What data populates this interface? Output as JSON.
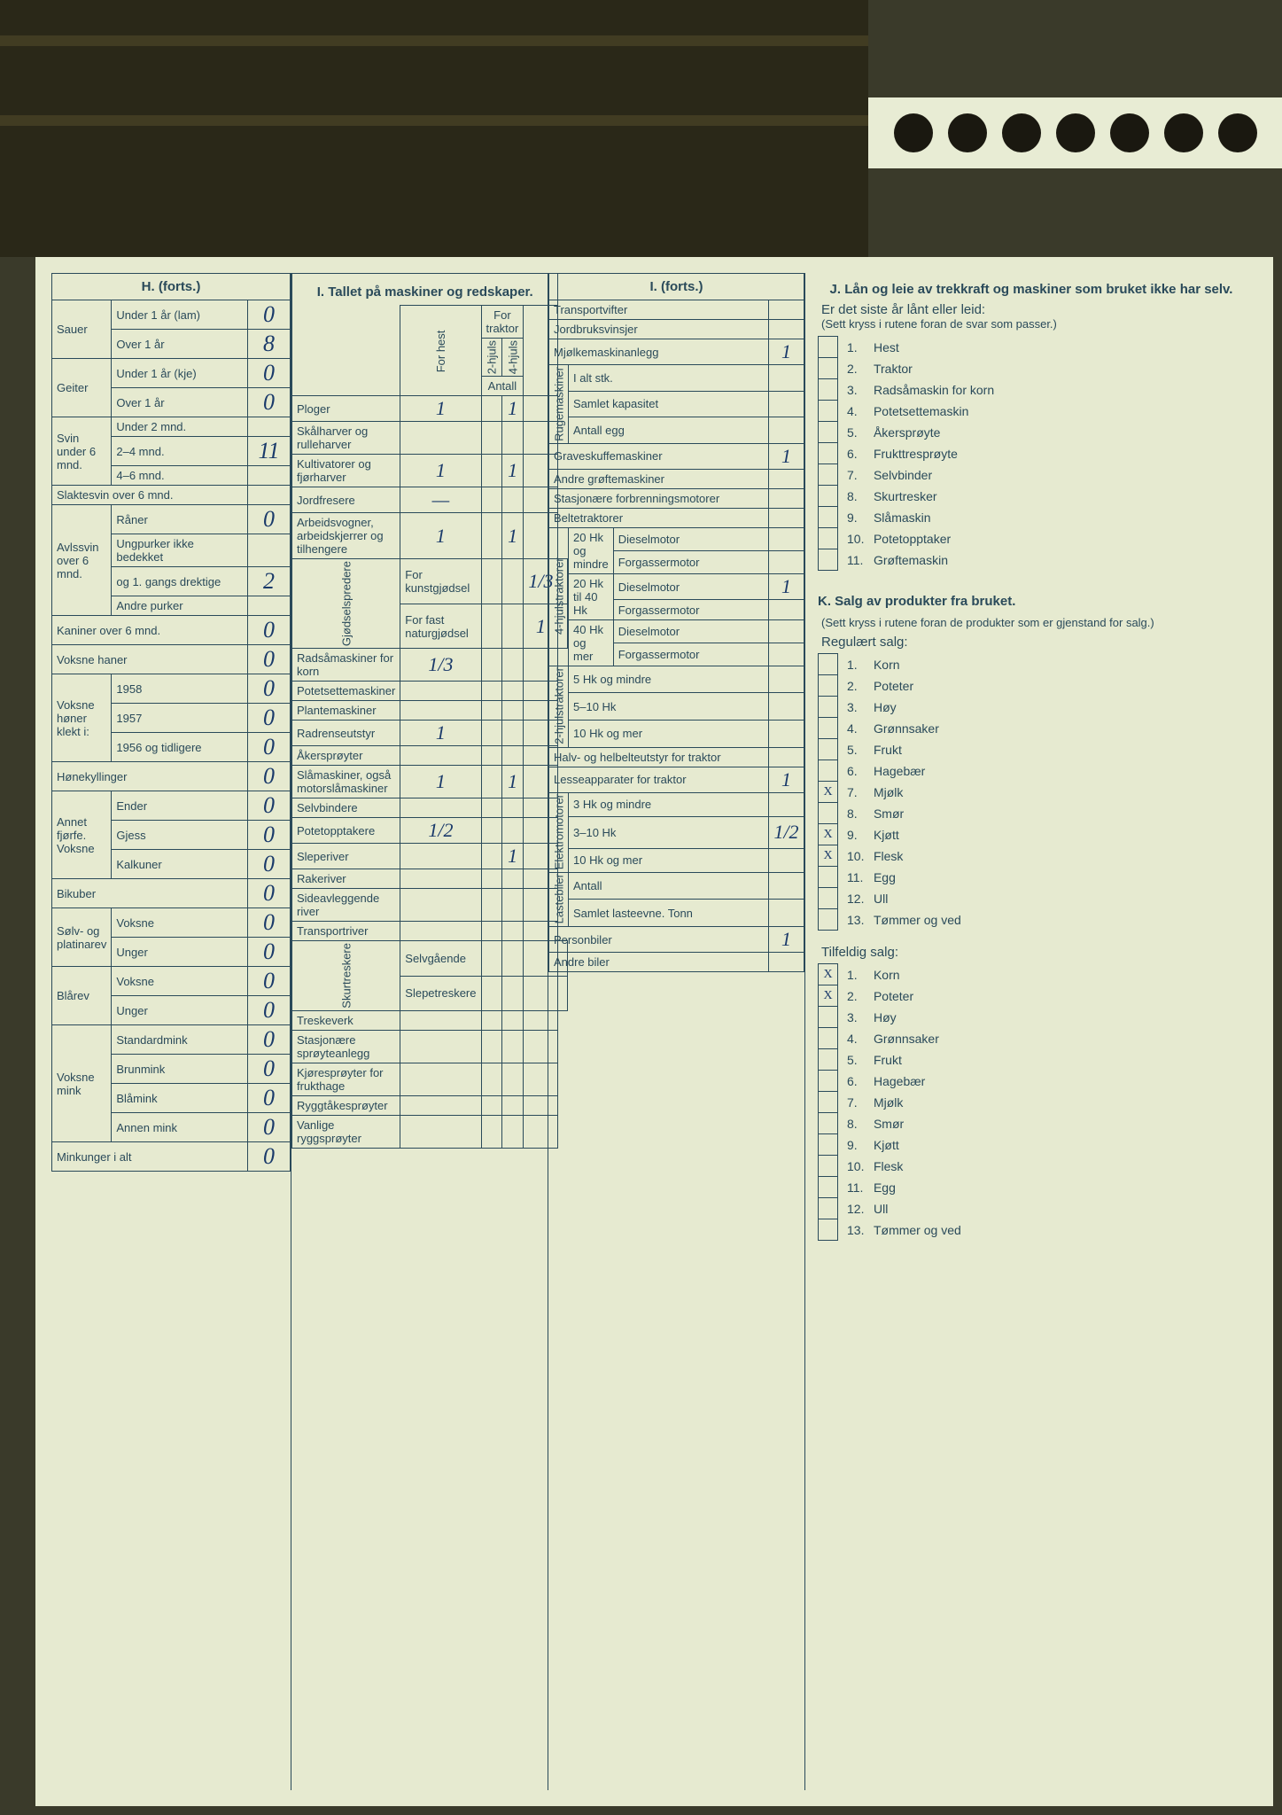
{
  "background_color": "#e6ead0",
  "rule_color": "#2a4a5a",
  "ink_color": "#1a3a6a",
  "sections": {
    "H": {
      "header": "H. (forts.)",
      "rows": [
        {
          "group": "Sauer",
          "label": "Under 1 år (lam)",
          "value": "0"
        },
        {
          "group": "",
          "label": "Over 1 år",
          "value": "8"
        },
        {
          "group": "Geiter",
          "label": "Under 1 år (kje)",
          "value": "0"
        },
        {
          "group": "",
          "label": "Over 1 år",
          "value": "0"
        },
        {
          "group": "Svin under 6 mnd.",
          "label": "Under 2 mnd.",
          "value": ""
        },
        {
          "group": "",
          "label": "2–4 mnd.",
          "value": "11"
        },
        {
          "group": "",
          "label": "4–6 mnd.",
          "value": ""
        },
        {
          "group": "Slaktesvin over 6 mnd.",
          "label": "",
          "value": ""
        },
        {
          "group": "Avlssvin over 6 mnd.",
          "label": "Råner",
          "value": "0"
        },
        {
          "group": "",
          "label": "Ungpurker ikke bedekket",
          "value": ""
        },
        {
          "group": "",
          "label": "og 1. gangs drektige",
          "value": "2"
        },
        {
          "group": "",
          "label": "Andre purker",
          "value": ""
        },
        {
          "group": "Kaniner over 6 mnd.",
          "label": "",
          "value": "0"
        },
        {
          "group": "Voksne haner",
          "label": "",
          "value": "0"
        },
        {
          "group": "Voksne høner klekt i:",
          "label": "1958",
          "value": "0"
        },
        {
          "group": "",
          "label": "1957",
          "value": "0"
        },
        {
          "group": "",
          "label": "1956 og tidligere",
          "value": "0"
        },
        {
          "group": "Hønekyllinger",
          "label": "",
          "value": "0"
        },
        {
          "group": "Annet fjørfe. Voksne",
          "label": "Ender",
          "value": "0"
        },
        {
          "group": "",
          "label": "Gjess",
          "value": "0"
        },
        {
          "group": "",
          "label": "Kalkuner",
          "value": "0"
        },
        {
          "group": "Bikuber",
          "label": "",
          "value": "0"
        },
        {
          "group": "Sølv- og platinarev",
          "label": "Voksne",
          "value": "0"
        },
        {
          "group": "",
          "label": "Unger",
          "value": "0"
        },
        {
          "group": "Blårev",
          "label": "Voksne",
          "value": "0"
        },
        {
          "group": "",
          "label": "Unger",
          "value": "0"
        },
        {
          "group": "Voksne mink",
          "label": "Standardmink",
          "value": "0"
        },
        {
          "group": "",
          "label": "Brunmink",
          "value": "0"
        },
        {
          "group": "",
          "label": "Blåmink",
          "value": "0"
        },
        {
          "group": "",
          "label": "Annen mink",
          "value": "0"
        },
        {
          "group": "Minkunger i alt",
          "label": "",
          "value": "0"
        }
      ]
    },
    "I": {
      "header": "I. Tallet på maskiner og redskaper.",
      "cols": [
        "For hest",
        "2-hjuls",
        "4-hjuls"
      ],
      "traktor_label": "For traktor",
      "antall_label": "Antall",
      "rows": [
        {
          "label": "Ploger",
          "v": [
            "1",
            "",
            "1",
            ""
          ]
        },
        {
          "label": "Skålharver og rulleharver",
          "v": [
            "",
            "",
            "",
            ""
          ]
        },
        {
          "label": "Kultivatorer og fjørharver",
          "v": [
            "1",
            "",
            "1",
            ""
          ]
        },
        {
          "label": "Jordfresere",
          "v": [
            "—",
            "",
            "",
            ""
          ]
        },
        {
          "label": "Arbeidsvogner, arbeidskjerrer og tilhengere",
          "v": [
            "1",
            "",
            "1",
            ""
          ]
        },
        {
          "group": "Gjødselspredere",
          "label": "For kunstgjødsel",
          "v": [
            "",
            "",
            "1/3",
            ""
          ]
        },
        {
          "group": "",
          "label": "For fast naturgjødsel",
          "v": [
            "",
            "",
            "1",
            ""
          ]
        },
        {
          "label": "Radsåmaskiner for korn",
          "v": [
            "1/3",
            "",
            "",
            ""
          ]
        },
        {
          "label": "Potetsettemaskiner",
          "v": [
            "",
            "",
            "",
            ""
          ]
        },
        {
          "label": "Plantemaskiner",
          "v": [
            "",
            "",
            "",
            ""
          ]
        },
        {
          "label": "Radrenseutstyr",
          "v": [
            "1",
            "",
            "",
            ""
          ]
        },
        {
          "label": "Åkersprøyter",
          "v": [
            "",
            "",
            "",
            ""
          ]
        },
        {
          "label": "Slåmaskiner, også motorslåmaskiner",
          "v": [
            "1",
            "",
            "1",
            ""
          ]
        },
        {
          "label": "Selvbindere",
          "v": [
            "",
            "",
            "",
            ""
          ]
        },
        {
          "label": "Potetopptakere",
          "v": [
            "1/2",
            "",
            "",
            ""
          ]
        },
        {
          "label": "Sleperiver",
          "v": [
            "",
            "",
            "1",
            ""
          ]
        },
        {
          "label": "Rakeriver",
          "v": [
            "",
            "",
            "",
            ""
          ]
        },
        {
          "label": "Sideavleggende river",
          "v": [
            "",
            "",
            "",
            ""
          ]
        },
        {
          "label": "Transportriver",
          "v": [
            "",
            "",
            "",
            ""
          ]
        },
        {
          "group": "Skurtreskere",
          "label": "Selvgående",
          "v": [
            "",
            "",
            "",
            ""
          ]
        },
        {
          "group": "",
          "label": "Slepetreskere",
          "v": [
            "",
            "",
            "",
            ""
          ]
        },
        {
          "label": "Treskeverk",
          "v": [
            "",
            "",
            "",
            ""
          ]
        },
        {
          "label": "Stasjonære sprøyteanlegg",
          "v": [
            "",
            "",
            "",
            ""
          ]
        },
        {
          "label": "Kjøresprøyter for frukthage",
          "v": [
            "",
            "",
            "",
            ""
          ]
        },
        {
          "label": "Ryggtåkesprøyter",
          "v": [
            "",
            "",
            "",
            ""
          ]
        },
        {
          "label": "Vanlige ryggsprøyter",
          "v": [
            "",
            "",
            "",
            ""
          ]
        }
      ]
    },
    "I2": {
      "header": "I. (forts.)",
      "rows_top": [
        {
          "label": "Transportvifter",
          "value": ""
        },
        {
          "label": "Jordbruksvinsjer",
          "value": ""
        },
        {
          "label": "Mjølkemaskinanlegg",
          "value": "1"
        }
      ],
      "ruge": {
        "group": "Rugemaskiner",
        "rows": [
          {
            "label": "I alt stk.",
            "value": ""
          },
          {
            "label": "Samlet kapasitet",
            "value": ""
          },
          {
            "label": "Antall egg",
            "value": ""
          }
        ]
      },
      "rows_mid": [
        {
          "label": "Graveskuffemaskiner",
          "value": "1"
        },
        {
          "label": "Andre grøftemaskiner",
          "value": ""
        },
        {
          "label": "Stasjonære forbrenningsmotorer",
          "value": ""
        },
        {
          "label": "Beltetraktorer",
          "value": ""
        }
      ],
      "trak4": {
        "group": "4-hjulstraktorer",
        "rows": [
          {
            "sub": "20 Hk og mindre",
            "label": "Dieselmotor",
            "value": ""
          },
          {
            "sub": "",
            "label": "Forgassermotor",
            "value": ""
          },
          {
            "sub": "20 Hk til 40 Hk",
            "label": "Dieselmotor",
            "value": "1"
          },
          {
            "sub": "",
            "label": "Forgassermotor",
            "value": ""
          },
          {
            "sub": "40 Hk og mer",
            "label": "Dieselmotor",
            "value": ""
          },
          {
            "sub": "",
            "label": "Forgassermotor",
            "value": ""
          }
        ]
      },
      "trak2": {
        "group": "2-hjulstraktorer",
        "rows": [
          {
            "label": "5 Hk og mindre",
            "value": ""
          },
          {
            "label": "5–10 Hk",
            "value": ""
          },
          {
            "label": "10 Hk og mer",
            "value": ""
          }
        ]
      },
      "rows_bot": [
        {
          "label": "Halv- og helbelteutstyr for traktor",
          "value": ""
        },
        {
          "label": "Lesseapparater for traktor",
          "value": "1"
        }
      ],
      "elektro": {
        "group": "Elektromotorer",
        "rows": [
          {
            "label": "3 Hk og mindre",
            "value": ""
          },
          {
            "label": "3–10 Hk",
            "value": "1/2"
          },
          {
            "label": "10 Hk og mer",
            "value": ""
          }
        ]
      },
      "laste": {
        "group": "Lastebiler",
        "rows": [
          {
            "label": "Antall",
            "value": ""
          },
          {
            "label": "Samlet lasteevne. Tonn",
            "value": ""
          }
        ]
      },
      "rows_end": [
        {
          "label": "Personbiler",
          "value": "1"
        },
        {
          "label": "Andre biler",
          "value": ""
        }
      ]
    },
    "J": {
      "title": "J. Lån og leie av trekkraft og maskiner som bruket ikke har selv.",
      "subtitle": "Er det siste år lånt eller leid:",
      "note": "(Sett kryss i rutene foran de svar som passer.)",
      "items": [
        {
          "n": "1.",
          "label": "Hest",
          "x": ""
        },
        {
          "n": "2.",
          "label": "Traktor",
          "x": ""
        },
        {
          "n": "3.",
          "label": "Radsåmaskin for korn",
          "x": ""
        },
        {
          "n": "4.",
          "label": "Potetsettemaskin",
          "x": ""
        },
        {
          "n": "5.",
          "label": "Åkersprøyte",
          "x": ""
        },
        {
          "n": "6.",
          "label": "Frukttresprøyte",
          "x": ""
        },
        {
          "n": "7.",
          "label": "Selvbinder",
          "x": ""
        },
        {
          "n": "8.",
          "label": "Skurtresker",
          "x": ""
        },
        {
          "n": "9.",
          "label": "Slåmaskin",
          "x": ""
        },
        {
          "n": "10.",
          "label": "Potetopptaker",
          "x": ""
        },
        {
          "n": "11.",
          "label": "Grøftemaskin",
          "x": ""
        }
      ]
    },
    "K": {
      "title": "K. Salg av produkter fra bruket.",
      "note": "(Sett kryss i rutene foran de produkter som er gjenstand for salg.)",
      "reg_title": "Regulært salg:",
      "reg": [
        {
          "n": "1.",
          "label": "Korn",
          "x": ""
        },
        {
          "n": "2.",
          "label": "Poteter",
          "x": ""
        },
        {
          "n": "3.",
          "label": "Høy",
          "x": ""
        },
        {
          "n": "4.",
          "label": "Grønnsaker",
          "x": ""
        },
        {
          "n": "5.",
          "label": "Frukt",
          "x": ""
        },
        {
          "n": "6.",
          "label": "Hagebær",
          "x": ""
        },
        {
          "n": "7.",
          "label": "Mjølk",
          "x": "X"
        },
        {
          "n": "8.",
          "label": "Smør",
          "x": ""
        },
        {
          "n": "9.",
          "label": "Kjøtt",
          "x": "X"
        },
        {
          "n": "10.",
          "label": "Flesk",
          "x": "X"
        },
        {
          "n": "11.",
          "label": "Egg",
          "x": ""
        },
        {
          "n": "12.",
          "label": "Ull",
          "x": ""
        },
        {
          "n": "13.",
          "label": "Tømmer og ved",
          "x": ""
        }
      ],
      "tilf_title": "Tilfeldig salg:",
      "tilf": [
        {
          "n": "1.",
          "label": "Korn",
          "x": "X"
        },
        {
          "n": "2.",
          "label": "Poteter",
          "x": "X"
        },
        {
          "n": "3.",
          "label": "Høy",
          "x": ""
        },
        {
          "n": "4.",
          "label": "Grønnsaker",
          "x": ""
        },
        {
          "n": "5.",
          "label": "Frukt",
          "x": ""
        },
        {
          "n": "6.",
          "label": "Hagebær",
          "x": ""
        },
        {
          "n": "7.",
          "label": "Mjølk",
          "x": ""
        },
        {
          "n": "8.",
          "label": "Smør",
          "x": ""
        },
        {
          "n": "9.",
          "label": "Kjøtt",
          "x": ""
        },
        {
          "n": "10.",
          "label": "Flesk",
          "x": ""
        },
        {
          "n": "11.",
          "label": "Egg",
          "x": ""
        },
        {
          "n": "12.",
          "label": "Ull",
          "x": ""
        },
        {
          "n": "13.",
          "label": "Tømmer og ved",
          "x": ""
        }
      ]
    }
  }
}
